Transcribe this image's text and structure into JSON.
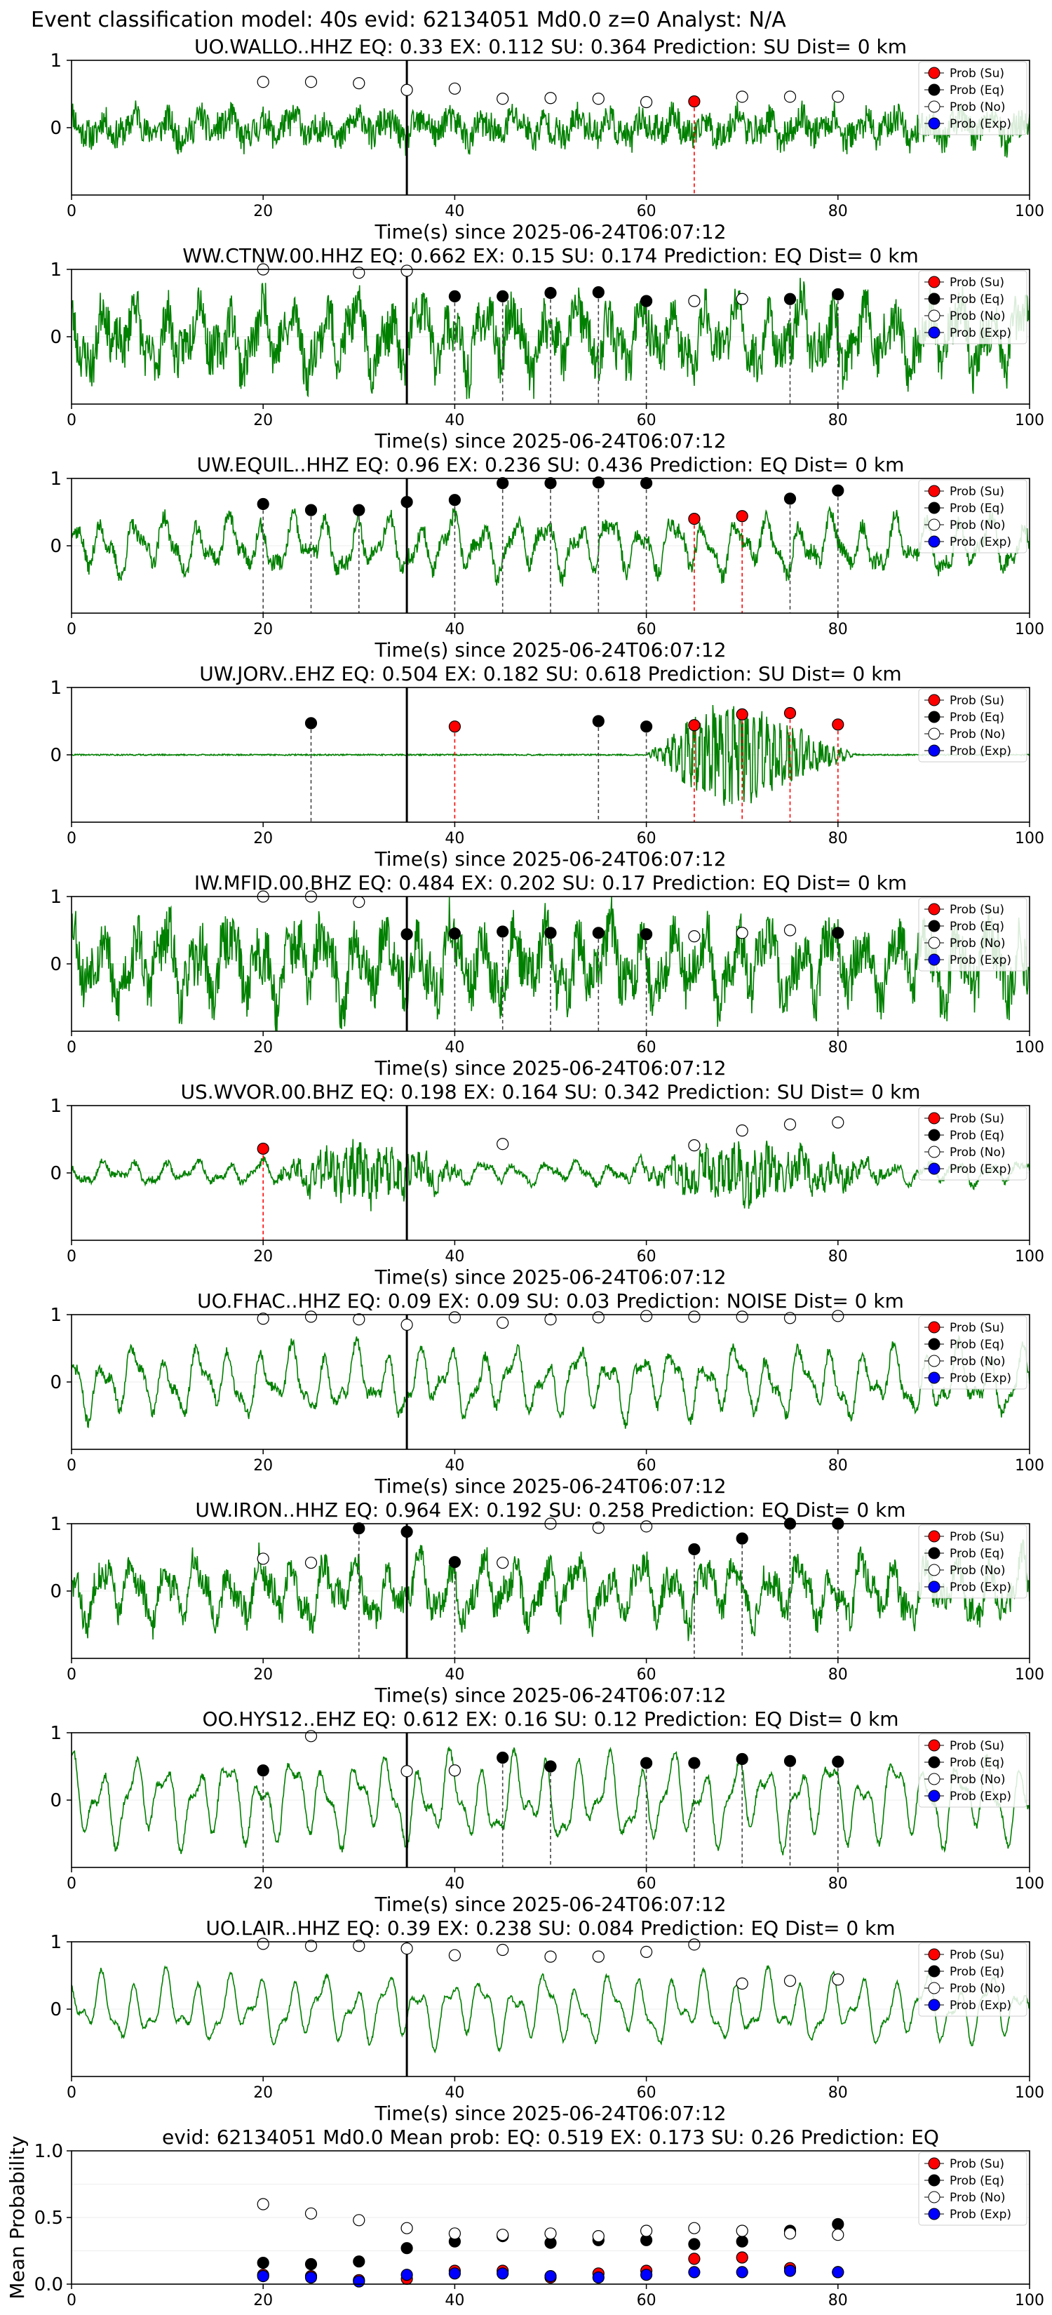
{
  "figure_title": "Event classification model: 40s evid: 62134051 Md0.0 z=0 Analyst: N/A",
  "colors": {
    "waveform": "#008000",
    "su": "#ff0000",
    "eq": "#000000",
    "no": "#ffffff",
    "exp": "#0000ff",
    "axis": "#000000",
    "grid": "#eeeeee",
    "pick_line": "#000000"
  },
  "legend_labels": [
    "Prob (Su)",
    "Prob (Eq)",
    "Prob (No)",
    "Prob (Exp)"
  ],
  "chart_data": [
    {
      "type": "scatter",
      "title": "UO.WALLO..HHZ   EQ: 0.33  EX: 0.112  SU: 0.364   Prediction: SU    Dist= 0 km",
      "xlabel": "Time(s) since 2025-06-24T06:07:12",
      "xlim": [
        0,
        100
      ],
      "xticks": [
        "0",
        "20",
        "40",
        "60",
        "80",
        "100"
      ],
      "ylim": [
        -1,
        1
      ],
      "yticks": [
        "0",
        "1"
      ],
      "pick_time": 35,
      "amplitude": 0.2,
      "noise": 0.22,
      "seed": 11,
      "points": [
        {
          "t": 20,
          "p": 0.68,
          "cls": "no"
        },
        {
          "t": 25,
          "p": 0.68,
          "cls": "no"
        },
        {
          "t": 30,
          "p": 0.66,
          "cls": "no"
        },
        {
          "t": 35,
          "p": 0.56,
          "cls": "no"
        },
        {
          "t": 40,
          "p": 0.58,
          "cls": "no"
        },
        {
          "t": 45,
          "p": 0.43,
          "cls": "no"
        },
        {
          "t": 50,
          "p": 0.44,
          "cls": "no"
        },
        {
          "t": 55,
          "p": 0.43,
          "cls": "no"
        },
        {
          "t": 60,
          "p": 0.38,
          "cls": "no"
        },
        {
          "t": 65,
          "p": 0.39,
          "cls": "su"
        },
        {
          "t": 70,
          "p": 0.46,
          "cls": "no"
        },
        {
          "t": 75,
          "p": 0.46,
          "cls": "no"
        },
        {
          "t": 80,
          "p": 0.46,
          "cls": "no"
        }
      ]
    },
    {
      "type": "scatter",
      "title": "WW.CTNW.00.HHZ   EQ: 0.662  EX: 0.15  SU: 0.174   Prediction: EQ    Dist= 0 km",
      "xlabel": "Time(s) since 2025-06-24T06:07:12",
      "xlim": [
        0,
        100
      ],
      "xticks": [
        "0",
        "20",
        "40",
        "60",
        "80",
        "100"
      ],
      "ylim": [
        -1,
        1
      ],
      "yticks": [
        "0",
        "1"
      ],
      "pick_time": 35,
      "amplitude": 0.55,
      "noise": 0.35,
      "seed": 23,
      "points": [
        {
          "t": 20,
          "p": 1.0,
          "cls": "no"
        },
        {
          "t": 30,
          "p": 0.95,
          "cls": "no"
        },
        {
          "t": 35,
          "p": 0.98,
          "cls": "no"
        },
        {
          "t": 40,
          "p": 0.6,
          "cls": "eq"
        },
        {
          "t": 45,
          "p": 0.6,
          "cls": "eq"
        },
        {
          "t": 50,
          "p": 0.65,
          "cls": "eq"
        },
        {
          "t": 55,
          "p": 0.66,
          "cls": "eq"
        },
        {
          "t": 60,
          "p": 0.53,
          "cls": "eq"
        },
        {
          "t": 65,
          "p": 0.53,
          "cls": "no"
        },
        {
          "t": 70,
          "p": 0.56,
          "cls": "no"
        },
        {
          "t": 75,
          "p": 0.56,
          "cls": "eq"
        },
        {
          "t": 80,
          "p": 0.63,
          "cls": "eq"
        }
      ]
    },
    {
      "type": "scatter",
      "title": "UW.EQUIL..HHZ   EQ: 0.96  EX: 0.236  SU: 0.436   Prediction: EQ    Dist= 0 km",
      "xlabel": "Time(s) since 2025-06-24T06:07:12",
      "xlim": [
        0,
        100
      ],
      "xticks": [
        "0",
        "20",
        "40",
        "60",
        "80",
        "100"
      ],
      "ylim": [
        -1,
        1
      ],
      "yticks": [
        "0",
        "1"
      ],
      "pick_time": 35,
      "amplitude": 0.45,
      "noise": 0.12,
      "seed": 37,
      "points": [
        {
          "t": 20,
          "p": 0.62,
          "cls": "eq"
        },
        {
          "t": 25,
          "p": 0.53,
          "cls": "eq"
        },
        {
          "t": 30,
          "p": 0.53,
          "cls": "eq"
        },
        {
          "t": 35,
          "p": 0.65,
          "cls": "eq"
        },
        {
          "t": 40,
          "p": 0.68,
          "cls": "eq"
        },
        {
          "t": 45,
          "p": 0.93,
          "cls": "eq"
        },
        {
          "t": 50,
          "p": 0.93,
          "cls": "eq"
        },
        {
          "t": 55,
          "p": 0.94,
          "cls": "eq"
        },
        {
          "t": 60,
          "p": 0.93,
          "cls": "eq"
        },
        {
          "t": 65,
          "p": 0.4,
          "cls": "su"
        },
        {
          "t": 70,
          "p": 0.44,
          "cls": "su"
        },
        {
          "t": 75,
          "p": 0.7,
          "cls": "eq"
        },
        {
          "t": 80,
          "p": 0.82,
          "cls": "eq"
        }
      ]
    },
    {
      "type": "scatter",
      "title": "UW.JORV..EHZ   EQ: 0.504  EX: 0.182  SU: 0.618   Prediction: SU    Dist= 0 km",
      "xlabel": "Time(s) since 2025-06-24T06:07:12",
      "xlim": [
        0,
        100
      ],
      "xticks": [
        "0",
        "20",
        "40",
        "60",
        "80",
        "100"
      ],
      "ylim": [
        -1,
        1
      ],
      "yticks": [
        "0",
        "1"
      ],
      "pick_time": 35,
      "amplitude": 0.0,
      "noise": 0.01,
      "seed": 41,
      "burst": {
        "start": 60,
        "peak": 68,
        "end": 82,
        "amp": 0.95
      },
      "points": [
        {
          "t": 25,
          "p": 0.47,
          "cls": "eq"
        },
        {
          "t": 40,
          "p": 0.42,
          "cls": "su"
        },
        {
          "t": 55,
          "p": 0.5,
          "cls": "eq"
        },
        {
          "t": 60,
          "p": 0.42,
          "cls": "eq"
        },
        {
          "t": 65,
          "p": 0.44,
          "cls": "su"
        },
        {
          "t": 70,
          "p": 0.6,
          "cls": "su"
        },
        {
          "t": 75,
          "p": 0.62,
          "cls": "su"
        },
        {
          "t": 80,
          "p": 0.45,
          "cls": "su"
        }
      ]
    },
    {
      "type": "scatter",
      "title": "IW.MFID.00.BHZ   EQ: 0.484  EX: 0.202  SU: 0.17   Prediction: EQ    Dist= 0 km",
      "xlabel": "Time(s) since 2025-06-24T06:07:12",
      "xlim": [
        0,
        100
      ],
      "xticks": [
        "0",
        "20",
        "40",
        "60",
        "80",
        "100"
      ],
      "ylim": [
        -1,
        1
      ],
      "yticks": [
        "0",
        "1"
      ],
      "pick_time": 35,
      "amplitude": 0.6,
      "noise": 0.4,
      "seed": 53,
      "points": [
        {
          "t": 20,
          "p": 1.0,
          "cls": "no"
        },
        {
          "t": 25,
          "p": 1.0,
          "cls": "no"
        },
        {
          "t": 30,
          "p": 0.92,
          "cls": "no"
        },
        {
          "t": 35,
          "p": 0.44,
          "cls": "eq"
        },
        {
          "t": 40,
          "p": 0.45,
          "cls": "eq"
        },
        {
          "t": 45,
          "p": 0.48,
          "cls": "eq"
        },
        {
          "t": 50,
          "p": 0.46,
          "cls": "eq"
        },
        {
          "t": 55,
          "p": 0.46,
          "cls": "eq"
        },
        {
          "t": 60,
          "p": 0.44,
          "cls": "eq"
        },
        {
          "t": 65,
          "p": 0.41,
          "cls": "no"
        },
        {
          "t": 70,
          "p": 0.46,
          "cls": "no"
        },
        {
          "t": 75,
          "p": 0.5,
          "cls": "no"
        },
        {
          "t": 80,
          "p": 0.46,
          "cls": "eq"
        }
      ]
    },
    {
      "type": "scatter",
      "title": "US.WVOR.00.BHZ   EQ: 0.198  EX: 0.164  SU: 0.342   Prediction: SU    Dist= 0 km",
      "xlabel": "Time(s) since 2025-06-24T06:07:12",
      "xlim": [
        0,
        100
      ],
      "xticks": [
        "0",
        "20",
        "40",
        "60",
        "80",
        "100"
      ],
      "ylim": [
        -1,
        1
      ],
      "yticks": [
        "0",
        "1"
      ],
      "pick_time": 35,
      "amplitude": 0.18,
      "noise": 0.05,
      "seed": 67,
      "burst": {
        "start": 20,
        "peak": 31,
        "end": 42,
        "amp": 0.5
      },
      "burst2": {
        "start": 57,
        "peak": 70,
        "end": 88,
        "amp": 0.45
      },
      "points": [
        {
          "t": 20,
          "p": 0.36,
          "cls": "su"
        },
        {
          "t": 45,
          "p": 0.43,
          "cls": "no"
        },
        {
          "t": 65,
          "p": 0.41,
          "cls": "no"
        },
        {
          "t": 70,
          "p": 0.63,
          "cls": "no"
        },
        {
          "t": 75,
          "p": 0.72,
          "cls": "no"
        },
        {
          "t": 80,
          "p": 0.75,
          "cls": "no"
        }
      ]
    },
    {
      "type": "scatter",
      "title": "UO.FHAC..HHZ   EQ: 0.09  EX: 0.09  SU: 0.03   Prediction: NOISE    Dist= 0 km",
      "xlabel": "Time(s) since 2025-06-24T06:07:12",
      "xlim": [
        0,
        100
      ],
      "xticks": [
        "0",
        "20",
        "40",
        "60",
        "80",
        "100"
      ],
      "ylim": [
        -1,
        1
      ],
      "yticks": [
        "0",
        "1"
      ],
      "pick_time": 35,
      "amplitude": 0.55,
      "noise": 0.08,
      "seed": 71,
      "points": [
        {
          "t": 20,
          "p": 0.94,
          "cls": "no"
        },
        {
          "t": 25,
          "p": 0.97,
          "cls": "no"
        },
        {
          "t": 30,
          "p": 0.93,
          "cls": "no"
        },
        {
          "t": 35,
          "p": 0.85,
          "cls": "no"
        },
        {
          "t": 40,
          "p": 0.96,
          "cls": "no"
        },
        {
          "t": 45,
          "p": 0.88,
          "cls": "no"
        },
        {
          "t": 50,
          "p": 0.93,
          "cls": "no"
        },
        {
          "t": 55,
          "p": 0.96,
          "cls": "no"
        },
        {
          "t": 60,
          "p": 0.98,
          "cls": "no"
        },
        {
          "t": 65,
          "p": 0.97,
          "cls": "no"
        },
        {
          "t": 70,
          "p": 0.97,
          "cls": "no"
        },
        {
          "t": 75,
          "p": 0.95,
          "cls": "no"
        },
        {
          "t": 80,
          "p": 0.98,
          "cls": "no"
        }
      ]
    },
    {
      "type": "scatter",
      "title": "UW.IRON..HHZ   EQ: 0.964  EX: 0.192  SU: 0.258   Prediction: EQ    Dist= 0 km",
      "xlabel": "Time(s) since 2025-06-24T06:07:12",
      "xlim": [
        0,
        100
      ],
      "xticks": [
        "0",
        "20",
        "40",
        "60",
        "80",
        "100"
      ],
      "ylim": [
        -1,
        1
      ],
      "yticks": [
        "0",
        "1"
      ],
      "pick_time": 35,
      "amplitude": 0.5,
      "noise": 0.22,
      "seed": 83,
      "points": [
        {
          "t": 20,
          "p": 0.48,
          "cls": "no"
        },
        {
          "t": 25,
          "p": 0.42,
          "cls": "no"
        },
        {
          "t": 30,
          "p": 0.93,
          "cls": "eq"
        },
        {
          "t": 35,
          "p": 0.88,
          "cls": "eq"
        },
        {
          "t": 40,
          "p": 0.43,
          "cls": "eq"
        },
        {
          "t": 45,
          "p": 0.42,
          "cls": "no"
        },
        {
          "t": 50,
          "p": 1.0,
          "cls": "no"
        },
        {
          "t": 55,
          "p": 0.94,
          "cls": "no"
        },
        {
          "t": 60,
          "p": 0.96,
          "cls": "no"
        },
        {
          "t": 65,
          "p": 0.62,
          "cls": "eq"
        },
        {
          "t": 70,
          "p": 0.78,
          "cls": "eq"
        },
        {
          "t": 75,
          "p": 1.0,
          "cls": "eq"
        },
        {
          "t": 80,
          "p": 1.0,
          "cls": "eq"
        }
      ]
    },
    {
      "type": "scatter",
      "title": "OO.HYS12..EHZ   EQ: 0.612  EX: 0.16  SU: 0.12   Prediction: EQ    Dist= 0 km",
      "xlabel": "Time(s) since 2025-06-24T06:07:12",
      "xlim": [
        0,
        100
      ],
      "xticks": [
        "0",
        "20",
        "40",
        "60",
        "80",
        "100"
      ],
      "ylim": [
        -1,
        1
      ],
      "yticks": [
        "0",
        "1"
      ],
      "pick_time": 35,
      "amplitude": 0.7,
      "noise": 0.05,
      "seed": 97,
      "points": [
        {
          "t": 20,
          "p": 0.44,
          "cls": "eq"
        },
        {
          "t": 25,
          "p": 0.95,
          "cls": "no"
        },
        {
          "t": 35,
          "p": 0.43,
          "cls": "no"
        },
        {
          "t": 40,
          "p": 0.44,
          "cls": "no"
        },
        {
          "t": 45,
          "p": 0.63,
          "cls": "eq"
        },
        {
          "t": 50,
          "p": 0.5,
          "cls": "eq"
        },
        {
          "t": 60,
          "p": 0.55,
          "cls": "eq"
        },
        {
          "t": 65,
          "p": 0.55,
          "cls": "eq"
        },
        {
          "t": 70,
          "p": 0.61,
          "cls": "eq"
        },
        {
          "t": 75,
          "p": 0.58,
          "cls": "eq"
        },
        {
          "t": 80,
          "p": 0.57,
          "cls": "eq"
        }
      ]
    },
    {
      "type": "scatter",
      "title": "UO.LAIR..HHZ   EQ: 0.39  EX: 0.238  SU: 0.084   Prediction: EQ    Dist= 0 km",
      "xlabel": "Time(s) since 2025-06-24T06:07:12",
      "xlim": [
        0,
        100
      ],
      "xticks": [
        "0",
        "20",
        "40",
        "60",
        "80",
        "100"
      ],
      "ylim": [
        -1,
        1
      ],
      "yticks": [
        "0",
        "1"
      ],
      "pick_time": 35,
      "amplitude": 0.55,
      "noise": 0.03,
      "seed": 101,
      "points": [
        {
          "t": 20,
          "p": 0.97,
          "cls": "no"
        },
        {
          "t": 25,
          "p": 0.94,
          "cls": "no"
        },
        {
          "t": 30,
          "p": 0.94,
          "cls": "no"
        },
        {
          "t": 35,
          "p": 0.9,
          "cls": "no"
        },
        {
          "t": 40,
          "p": 0.8,
          "cls": "no"
        },
        {
          "t": 45,
          "p": 0.88,
          "cls": "no"
        },
        {
          "t": 50,
          "p": 0.78,
          "cls": "no"
        },
        {
          "t": 55,
          "p": 0.78,
          "cls": "no"
        },
        {
          "t": 60,
          "p": 0.85,
          "cls": "no"
        },
        {
          "t": 65,
          "p": 0.96,
          "cls": "no"
        },
        {
          "t": 70,
          "p": 0.38,
          "cls": "no"
        },
        {
          "t": 75,
          "p": 0.42,
          "cls": "no"
        },
        {
          "t": 80,
          "p": 0.44,
          "cls": "no"
        }
      ]
    },
    {
      "type": "scatter",
      "title": "evid: 62134051  Md0.0   Mean prob:   EQ: 0.519  EX: 0.173  SU: 0.26   Prediction: EQ",
      "ylabel": "Mean Probability",
      "xlim": [
        0,
        100
      ],
      "xticks": [
        "0",
        "20",
        "40",
        "60",
        "80",
        "100"
      ],
      "ylim": [
        0,
        1
      ],
      "yticks": [
        "0.0",
        "0.5",
        "1.0"
      ],
      "series": [
        {
          "name": "Prob (Su)",
          "cls": "su",
          "t": [
            20,
            25,
            30,
            35,
            40,
            45,
            50,
            55,
            60,
            65,
            70,
            75,
            80
          ],
          "p": [
            0.07,
            0.06,
            0.03,
            0.04,
            0.1,
            0.1,
            0.05,
            0.08,
            0.1,
            0.19,
            0.2,
            0.12,
            0.09
          ]
        },
        {
          "name": "Prob (Eq)",
          "cls": "eq",
          "t": [
            20,
            25,
            30,
            35,
            40,
            45,
            50,
            55,
            60,
            65,
            70,
            75,
            80
          ],
          "p": [
            0.16,
            0.15,
            0.17,
            0.27,
            0.32,
            0.36,
            0.31,
            0.33,
            0.33,
            0.3,
            0.32,
            0.4,
            0.45
          ]
        },
        {
          "name": "Prob (No)",
          "cls": "no",
          "t": [
            20,
            25,
            30,
            35,
            40,
            45,
            50,
            55,
            60,
            65,
            70,
            75,
            80
          ],
          "p": [
            0.6,
            0.53,
            0.48,
            0.42,
            0.38,
            0.37,
            0.38,
            0.36,
            0.4,
            0.42,
            0.4,
            0.38,
            0.37
          ]
        },
        {
          "name": "Prob (Exp)",
          "cls": "exp",
          "t": [
            20,
            25,
            30,
            35,
            40,
            45,
            50,
            55,
            60,
            65,
            70,
            75,
            80
          ],
          "p": [
            0.06,
            0.05,
            0.02,
            0.07,
            0.08,
            0.08,
            0.06,
            0.05,
            0.07,
            0.09,
            0.09,
            0.1,
            0.09
          ]
        }
      ]
    }
  ]
}
